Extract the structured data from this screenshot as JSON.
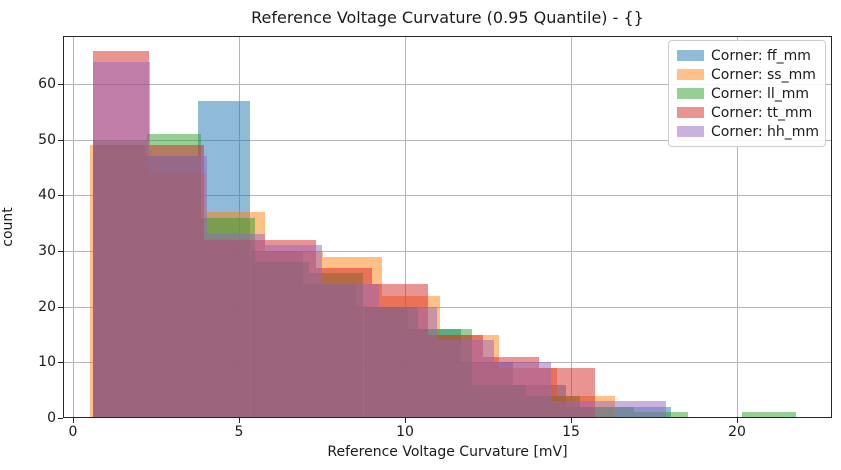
{
  "chart_data": {
    "type": "histogram-overlaid-bar",
    "title": "Reference Voltage Curvature (0.95 Quantile) - {}",
    "xlabel": "Reference Voltage Curvature [mV]",
    "ylabel": "count",
    "xlim": [
      -0.3,
      22.86
    ],
    "ylim": [
      0,
      68.6
    ],
    "xticks": [
      0,
      5,
      10,
      15,
      20
    ],
    "yticks": [
      0,
      10,
      20,
      30,
      40,
      50,
      60
    ],
    "grid": true,
    "grid_color": "#b5b5b5",
    "bar_alpha": 0.5,
    "legend_position": "upper-right",
    "series": [
      {
        "name": "ff_mm",
        "label": "Corner: ff_mm",
        "color": "#1f77b4",
        "bin_start": 0.6,
        "bin_width": 1.582,
        "counts": [
          49,
          47,
          57,
          30,
          24,
          20,
          16,
          10,
          6,
          2,
          2
        ]
      },
      {
        "name": "ss_mm",
        "label": "Corner: ss_mm",
        "color": "#ff7f0e",
        "bin_start": 0.5,
        "bin_width": 1.76,
        "counts": [
          49,
          44,
          37,
          30,
          29,
          22,
          15,
          9,
          4
        ]
      },
      {
        "name": "ll_mm",
        "label": "Corner: ll_mm",
        "color": "#2ca02c",
        "bin_start": 0.6,
        "bin_width": 1.63,
        "counts": [
          50,
          51,
          36,
          28,
          26,
          20,
          16,
          6,
          4,
          2,
          1,
          0,
          1
        ]
      },
      {
        "name": "tt_mm",
        "label": "Corner: tt_mm",
        "color": "#d62728",
        "bin_start": 0.6,
        "bin_width": 1.68,
        "counts": [
          66,
          49,
          32,
          32,
          27,
          24,
          15,
          11,
          9
        ]
      },
      {
        "name": "hh_mm",
        "label": "Corner: hh_mm",
        "color": "#9467bd",
        "bin_start": 0.6,
        "bin_width": 1.725,
        "counts": [
          64,
          47,
          33,
          31,
          24,
          20,
          14,
          10,
          3,
          3
        ]
      }
    ]
  }
}
